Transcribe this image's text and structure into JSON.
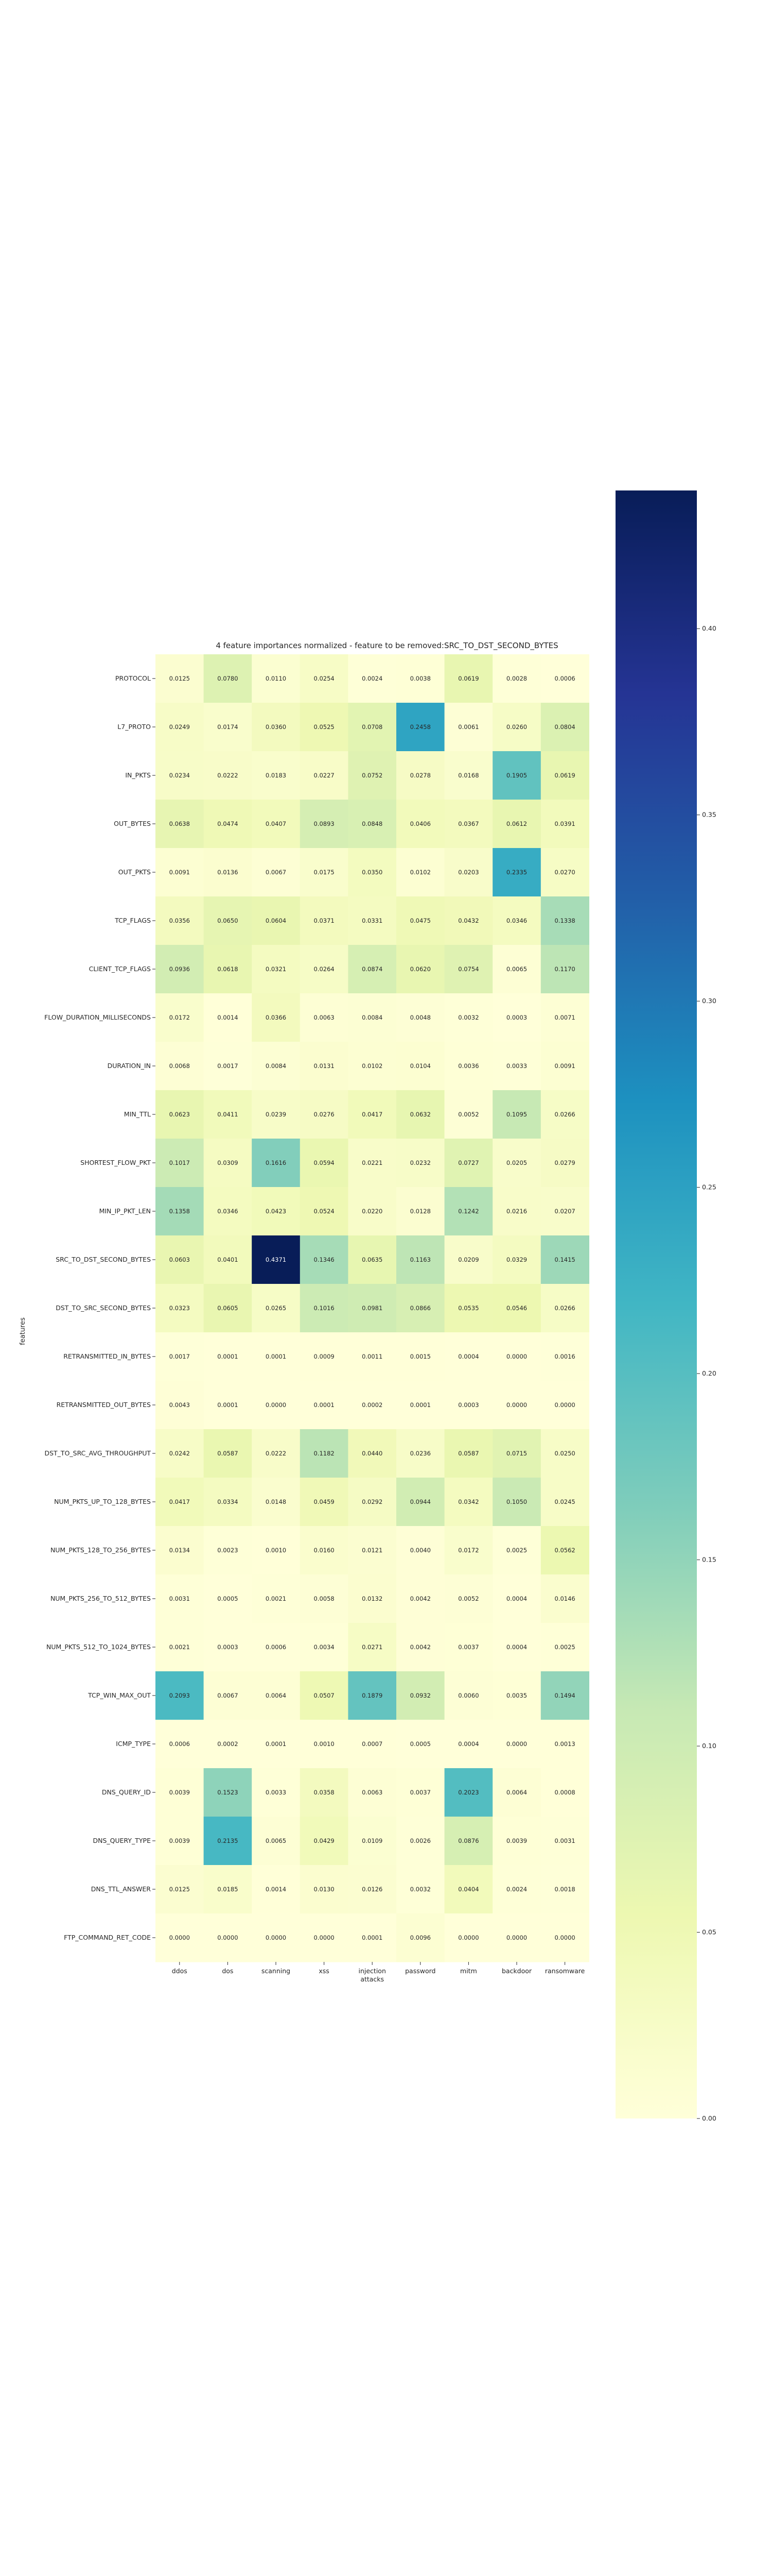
{
  "chart_data": {
    "type": "heatmap",
    "title": "4 feature importances normalized - feature to be removed:SRC_TO_DST_SECOND_BYTES",
    "ylabel": "features",
    "xlabel": "",
    "columns": [
      "ddos",
      "dos",
      "scanning",
      "xss",
      "injection attacks",
      "password",
      "mitm",
      "backdoor",
      "ransomware"
    ],
    "column_label_lines": [
      [
        "ddos"
      ],
      [
        "dos"
      ],
      [
        "scanning"
      ],
      [
        "xss"
      ],
      [
        "injection",
        "attacks"
      ],
      [
        "password"
      ],
      [
        "mitm"
      ],
      [
        "backdoor"
      ],
      [
        "ransomware"
      ]
    ],
    "rows": [
      "PROTOCOL",
      "L7_PROTO",
      "IN_PKTS",
      "OUT_BYTES",
      "OUT_PKTS",
      "TCP_FLAGS",
      "CLIENT_TCP_FLAGS",
      "FLOW_DURATION_MILLISECONDS",
      "DURATION_IN",
      "MIN_TTL",
      "SHORTEST_FLOW_PKT",
      "MIN_IP_PKT_LEN",
      "SRC_TO_DST_SECOND_BYTES",
      "DST_TO_SRC_SECOND_BYTES",
      "RETRANSMITTED_IN_BYTES",
      "RETRANSMITTED_OUT_BYTES",
      "DST_TO_SRC_AVG_THROUGHPUT",
      "NUM_PKTS_UP_TO_128_BYTES",
      "NUM_PKTS_128_TO_256_BYTES",
      "NUM_PKTS_256_TO_512_BYTES",
      "NUM_PKTS_512_TO_1024_BYTES",
      "TCP_WIN_MAX_OUT",
      "ICMP_TYPE",
      "DNS_QUERY_ID",
      "DNS_QUERY_TYPE",
      "DNS_TTL_ANSWER",
      "FTP_COMMAND_RET_CODE"
    ],
    "values": [
      [
        0.0125,
        0.078,
        0.011,
        0.0254,
        0.0024,
        0.0038,
        0.0619,
        0.0028,
        0.0006
      ],
      [
        0.0249,
        0.0174,
        0.036,
        0.0525,
        0.0708,
        0.2458,
        0.0061,
        0.026,
        0.0804
      ],
      [
        0.0234,
        0.0222,
        0.0183,
        0.0227,
        0.0752,
        0.0278,
        0.0168,
        0.1905,
        0.0619
      ],
      [
        0.0638,
        0.0474,
        0.0407,
        0.0893,
        0.0848,
        0.0406,
        0.0367,
        0.0612,
        0.0391
      ],
      [
        0.0091,
        0.0136,
        0.0067,
        0.0175,
        0.035,
        0.0102,
        0.0203,
        0.2335,
        0.027
      ],
      [
        0.0356,
        0.065,
        0.0604,
        0.0371,
        0.0331,
        0.0475,
        0.0432,
        0.0346,
        0.1338
      ],
      [
        0.0936,
        0.0618,
        0.0321,
        0.0264,
        0.0874,
        0.062,
        0.0754,
        0.0065,
        0.117
      ],
      [
        0.0172,
        0.0014,
        0.0366,
        0.0063,
        0.0084,
        0.0048,
        0.0032,
        0.0003,
        0.0071
      ],
      [
        0.0068,
        0.0017,
        0.0084,
        0.0131,
        0.0102,
        0.0104,
        0.0036,
        0.0033,
        0.0091
      ],
      [
        0.0623,
        0.0411,
        0.0239,
        0.0276,
        0.0417,
        0.0632,
        0.0052,
        0.1095,
        0.0266
      ],
      [
        0.1017,
        0.0309,
        0.1616,
        0.0594,
        0.0221,
        0.0232,
        0.0727,
        0.0205,
        0.0279
      ],
      [
        0.1358,
        0.0346,
        0.0423,
        0.0524,
        0.022,
        0.0128,
        0.1242,
        0.0216,
        0.0207
      ],
      [
        0.0603,
        0.0401,
        0.4371,
        0.1346,
        0.0635,
        0.1163,
        0.0209,
        0.0329,
        0.1415
      ],
      [
        0.0323,
        0.0605,
        0.0265,
        0.1016,
        0.0981,
        0.0866,
        0.0535,
        0.0546,
        0.0266
      ],
      [
        0.0017,
        0.0001,
        0.0001,
        0.0009,
        0.0011,
        0.0015,
        0.0004,
        0.0,
        0.0016
      ],
      [
        0.0043,
        0.0001,
        0.0,
        0.0001,
        0.0002,
        0.0001,
        0.0003,
        0.0,
        0.0
      ],
      [
        0.0242,
        0.0587,
        0.0222,
        0.1182,
        0.044,
        0.0236,
        0.0587,
        0.0715,
        0.025
      ],
      [
        0.0417,
        0.0334,
        0.0148,
        0.0459,
        0.0292,
        0.0944,
        0.0342,
        0.105,
        0.0245
      ],
      [
        0.0134,
        0.0023,
        0.001,
        0.016,
        0.0121,
        0.004,
        0.0172,
        0.0025,
        0.0562
      ],
      [
        0.0031,
        0.0005,
        0.0021,
        0.0058,
        0.0132,
        0.0042,
        0.0052,
        0.0004,
        0.0146
      ],
      [
        0.0021,
        0.0003,
        0.0006,
        0.0034,
        0.0271,
        0.0042,
        0.0037,
        0.0004,
        0.0025
      ],
      [
        0.2093,
        0.0067,
        0.0064,
        0.0507,
        0.1879,
        0.0932,
        0.006,
        0.0035,
        0.1494
      ],
      [
        0.0006,
        0.0002,
        0.0001,
        0.001,
        0.0007,
        0.0005,
        0.0004,
        0.0,
        0.0013
      ],
      [
        0.0039,
        0.1523,
        0.0033,
        0.0358,
        0.0063,
        0.0037,
        0.2023,
        0.0064,
        0.0008
      ],
      [
        0.0039,
        0.2135,
        0.0065,
        0.0429,
        0.0109,
        0.0026,
        0.0876,
        0.0039,
        0.0031
      ],
      [
        0.0125,
        0.0185,
        0.0014,
        0.013,
        0.0126,
        0.0032,
        0.0404,
        0.0024,
        0.0018
      ],
      [
        0.0,
        0.0,
        0.0,
        0.0,
        0.0001,
        0.0096,
        0.0,
        0.0,
        0.0
      ]
    ],
    "value_format_decimals": 4,
    "colormap": "YlGnBu",
    "colormap_stops": [
      "#ffffd9",
      "#edf8b1",
      "#c7e9b4",
      "#7fcdbb",
      "#41b6c4",
      "#1d91c0",
      "#225ea8",
      "#253494",
      "#081d58"
    ],
    "value_range": [
      0,
      0.4371
    ],
    "colorbar": {
      "ticks": [
        0.0,
        0.05,
        0.1,
        0.15,
        0.2,
        0.25,
        0.3,
        0.35,
        0.4
      ],
      "tick_labels": [
        "0.00",
        "0.05",
        "0.10",
        "0.15",
        "0.20",
        "0.25",
        "0.30",
        "0.35",
        "0.40"
      ]
    },
    "light_text_color": "#ffffff",
    "dark_text_color": "#262626"
  }
}
